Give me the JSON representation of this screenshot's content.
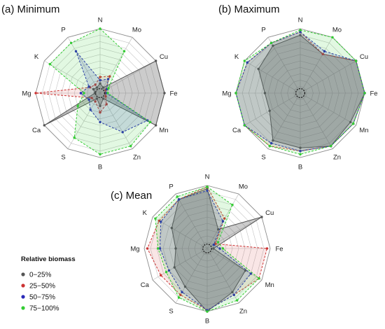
{
  "chart_data": {
    "type": "radar",
    "axes": [
      "N",
      "Mo",
      "Cu",
      "Fe",
      "Mn",
      "Zn",
      "B",
      "S",
      "Ca",
      "Mg",
      "K",
      "P"
    ],
    "scale": [
      0,
      100
    ],
    "series_colors": [
      "#555555",
      "#cc3333",
      "#2a2ab8",
      "#33cc33"
    ],
    "legend": {
      "title": "Relative biomass",
      "entries": [
        {
          "label": "0−25%",
          "color": "#555555"
        },
        {
          "label": "25−50%",
          "color": "#cc3333"
        },
        {
          "label": "50−75%",
          "color": "#2a2ab8"
        },
        {
          "label": "75−100%",
          "color": "#33cc33"
        }
      ],
      "position": "bottom-left"
    },
    "panels": [
      {
        "title": "(a) Minimum",
        "series": [
          {
            "values": [
              15,
              10,
              100,
              100,
              100,
              10,
              20,
              10,
              100,
              8,
              12,
              10
            ]
          },
          {
            "values": [
              25,
              30,
              10,
              8,
              10,
              20,
              30,
              15,
              15,
              100,
              18,
              15
            ]
          },
          {
            "values": [
              20,
              25,
              12,
              10,
              85,
              70,
              45,
              30,
              20,
              30,
              20,
              75
            ]
          },
          {
            "values": [
              100,
              75,
              15,
              12,
              90,
              95,
              95,
              80,
              40,
              25,
              90,
              90
            ]
          }
        ]
      },
      {
        "title": "(b) Maximum",
        "series": [
          {
            "values": [
              90,
              70,
              100,
              100,
              90,
              95,
              85,
              85,
              55,
              55,
              75,
              85
            ]
          },
          {
            "values": [
              95,
              70,
              100,
              100,
              95,
              95,
              90,
              95,
              100,
              100,
              95,
              90
            ]
          },
          {
            "values": [
              95,
              75,
              100,
              100,
              95,
              95,
              90,
              90,
              100,
              100,
              95,
              90
            ]
          },
          {
            "values": [
              98,
              100,
              100,
              100,
              95,
              95,
              95,
              95,
              100,
              100,
              100,
              90
            ]
          }
        ]
      },
      {
        "title": "(c) Mean",
        "series": [
          {
            "values": [
              95,
              35,
              100,
              10,
              70,
              80,
              100,
              70,
              60,
              50,
              65,
              90
            ]
          },
          {
            "values": [
              98,
              55,
              15,
              95,
              95,
              85,
              98,
              85,
              85,
              95,
              88,
              90
            ]
          },
          {
            "values": [
              92,
              50,
              12,
              20,
              80,
              85,
              98,
              80,
              70,
              75,
              85,
              90
            ]
          },
          {
            "values": [
              98,
              80,
              20,
              25,
              95,
              95,
              100,
              90,
              75,
              78,
              95,
              95
            ]
          }
        ]
      }
    ]
  }
}
